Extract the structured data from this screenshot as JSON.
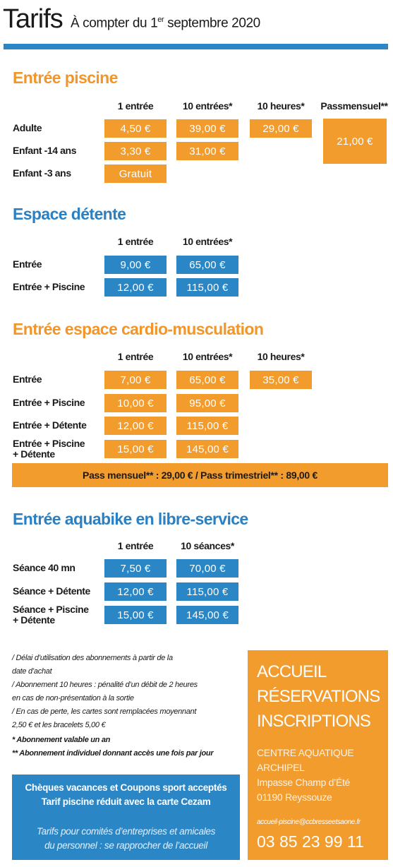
{
  "header": {
    "title": "Tarifs",
    "subtitle_start": "À compter du 1",
    "subtitle_sup": "er",
    "subtitle_end": " septembre 2020"
  },
  "sections": [
    {
      "title": "Entrée piscine",
      "color": "#f0962a",
      "cell_color": "#f29c2e",
      "columns": [
        "1 entrée",
        "10 entrées*",
        "10 heures*",
        "Passmensuel**"
      ],
      "rows": [
        {
          "label": "Adulte",
          "cells": [
            "4,50 €",
            "39,00 €",
            "29,00 €"
          ]
        },
        {
          "label": "Enfant -14 ans",
          "cells": [
            "3,30 €",
            "31,00 €"
          ]
        },
        {
          "label": "Enfant -3 ans",
          "cells": [
            "Gratuit"
          ]
        }
      ],
      "spanning_cell": "21,00 €"
    },
    {
      "title": "Espace détente",
      "color": "#2a80c2",
      "cell_color": "#2b86c6",
      "columns": [
        "1 entrée",
        "10 entrées*"
      ],
      "rows": [
        {
          "label": "Entrée",
          "cells": [
            "9,00 €",
            "65,00 €"
          ]
        },
        {
          "label": "Entrée + Piscine",
          "cells": [
            "12,00 €",
            "115,00 €"
          ]
        }
      ]
    },
    {
      "title": "Entrée espace cardio-musculation",
      "color": "#f0962a",
      "cell_color": "#f29c2e",
      "columns": [
        "1 entrée",
        "10 entrées*",
        "10 heures*"
      ],
      "rows": [
        {
          "label": "Entrée",
          "cells": [
            "7,00 €",
            "65,00 €",
            "35,00 €"
          ]
        },
        {
          "label": "Entrée + Piscine",
          "cells": [
            "10,00 €",
            "95,00 €"
          ]
        },
        {
          "label": "Entrée + Détente",
          "cells": [
            "12,00 €",
            "115,00 €"
          ]
        },
        {
          "label": "Entrée + Piscine\n+ Détente",
          "cells": [
            "15,00 €",
            "145,00 €"
          ]
        }
      ],
      "banner": "Pass mensuel** : 29,00 € / Pass trimestriel** : 89,00 €"
    },
    {
      "title": "Entrée aquabike en libre-service",
      "color": "#2a80c2",
      "cell_color": "#2b86c6",
      "columns": [
        "1 entrée",
        "10 séances*"
      ],
      "rows": [
        {
          "label": "Séance 40 mn",
          "cells": [
            "7,50 €",
            "70,00 €"
          ]
        },
        {
          "label": "Séance + Détente",
          "cells": [
            "12,00 €",
            "115,00 €"
          ]
        },
        {
          "label": "Séance + Piscine\n+ Détente",
          "cells": [
            "15,00 €",
            "145,00 €"
          ]
        }
      ]
    }
  ],
  "notes": [
    "/ Délai d’utilisation des abonnements à partir de la",
    "date d’achat",
    "/ Abonnement 10 heures : pénalité d’un débit de 2 heures",
    "en cas de non-présentation à la sortie",
    "/ En cas de perte, les cartes sont remplacées moyennant",
    "2,50 € et les bracelets 5,00 €"
  ],
  "footnotes": [
    "* Abonnement valable un an",
    "** Abonnement individuel donnant accès une fois par jour"
  ],
  "info_box": {
    "bold_lines": [
      "Chèques vacances et Coupons sport acceptés",
      "Tarif piscine réduit avec la carte Cezam"
    ],
    "italic_lines": [
      "Tarifs pour comités d’entreprises et amicales",
      "du personnel : se rapprocher de l’accueil"
    ]
  },
  "contact": {
    "heading": [
      "ACCUEIL",
      "RÉSERVATIONS",
      "INSCRIPTIONS"
    ],
    "address": [
      "CENTRE AQUATIQUE",
      "ARCHIPEL",
      "Impasse Champ d’Été",
      "01190 Reyssouze"
    ],
    "email": "accueil-piscine@ccbresseetsaone.fr",
    "phone": "03 85 23 99 11"
  }
}
